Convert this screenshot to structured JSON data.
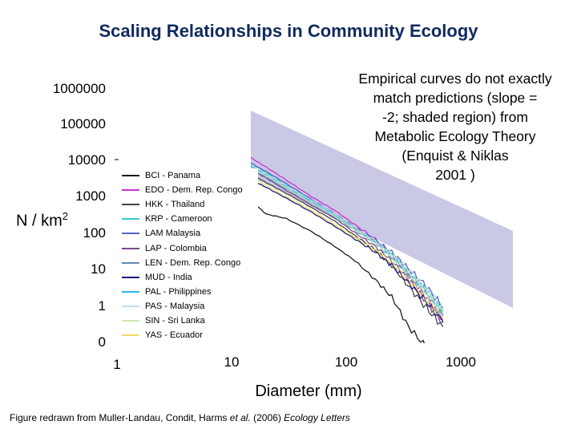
{
  "title": "Scaling Relationships in Community Ecology",
  "annotation": {
    "lines": [
      "Empirical curves do not exactly",
      "match predictions (slope =",
      "-2; shaded region) from",
      "Metabolic Ecology Theory",
      "(Enquist & Niklas",
      "2001 )"
    ]
  },
  "ylabel": {
    "text": "N / km",
    "sup": "2"
  },
  "caption": {
    "prefix": "Figure redrawn from Muller-Landau, Condit, Harms ",
    "etal": "et al.",
    "middle": " (2006) ",
    "journal": "Ecology Letters"
  },
  "chart_data": {
    "type": "line",
    "xscale": "log",
    "yscale": "log",
    "xlabel": "Diameter (mm)",
    "xticks": [
      "1",
      "10",
      "100",
      "1000"
    ],
    "yticks": [
      "1000000",
      "100000",
      "10000",
      "1000",
      "100",
      "10",
      "1",
      "0"
    ],
    "shaded_region": {
      "slope": -2,
      "color": "#c9c9e6"
    },
    "series": [
      {
        "name": "BCI - Panama",
        "color": "#1c1c1c",
        "points": [
          [
            8.5,
            500
          ],
          [
            10,
            900
          ],
          [
            15,
            900
          ],
          [
            20,
            400
          ],
          [
            30,
            300
          ],
          [
            50,
            130
          ],
          [
            80,
            50
          ],
          [
            120,
            20
          ],
          [
            180,
            6
          ],
          [
            250,
            2
          ],
          [
            350,
            0.3
          ],
          [
            500,
            0.08
          ],
          [
            700,
            0.05
          ]
        ]
      },
      {
        "name": "EDO - Dem. Rep. Congo",
        "color": "#cc33cc",
        "points": [
          [
            9,
            42000
          ],
          [
            10,
            30000
          ],
          [
            15,
            14000
          ],
          [
            20,
            8000
          ],
          [
            30,
            3500
          ],
          [
            50,
            1200
          ],
          [
            80,
            500
          ],
          [
            120,
            200
          ],
          [
            180,
            80
          ],
          [
            250,
            30
          ],
          [
            350,
            8
          ],
          [
            500,
            2
          ],
          [
            700,
            0.5
          ]
        ]
      },
      {
        "name": "HKK - Thailand",
        "color": "#444444",
        "points": [
          [
            9,
            12000
          ],
          [
            10,
            10000
          ],
          [
            15,
            5000
          ],
          [
            20,
            3000
          ],
          [
            30,
            1500
          ],
          [
            50,
            600
          ],
          [
            80,
            250
          ],
          [
            120,
            100
          ],
          [
            180,
            40
          ],
          [
            250,
            15
          ],
          [
            350,
            4
          ],
          [
            500,
            1
          ],
          [
            700,
            0.3
          ]
        ]
      },
      {
        "name": "KRP - Cameroon",
        "color": "#33cccc",
        "points": [
          [
            9,
            26000
          ],
          [
            10,
            20000
          ],
          [
            15,
            9000
          ],
          [
            20,
            5500
          ],
          [
            30,
            2500
          ],
          [
            50,
            900
          ],
          [
            80,
            380
          ],
          [
            120,
            160
          ],
          [
            180,
            70
          ],
          [
            250,
            30
          ],
          [
            350,
            10
          ],
          [
            500,
            3
          ],
          [
            700,
            0.8
          ]
        ]
      },
      {
        "name": "LAM   Malaysia",
        "color": "#5566bb",
        "points": [
          [
            9,
            28000
          ],
          [
            10,
            22000
          ],
          [
            15,
            10000
          ],
          [
            20,
            6000
          ],
          [
            30,
            2800
          ],
          [
            50,
            1000
          ],
          [
            80,
            400
          ],
          [
            120,
            170
          ],
          [
            180,
            75
          ],
          [
            250,
            35
          ],
          [
            350,
            12
          ],
          [
            500,
            4
          ],
          [
            700,
            1
          ]
        ]
      },
      {
        "name": "LAP - Colombia",
        "color": "#7a4a8a",
        "points": [
          [
            9,
            16000
          ],
          [
            10,
            13000
          ],
          [
            15,
            6500
          ],
          [
            20,
            4000
          ],
          [
            30,
            1800
          ],
          [
            50,
            700
          ],
          [
            80,
            300
          ],
          [
            120,
            120
          ],
          [
            180,
            50
          ],
          [
            250,
            20
          ],
          [
            350,
            6
          ],
          [
            500,
            1.5
          ],
          [
            700,
            0.4
          ]
        ]
      },
      {
        "name": "LEN - Dem. Rep. Congo",
        "color": "#6688bb",
        "points": [
          [
            9,
            18000
          ],
          [
            10,
            14000
          ],
          [
            15,
            7000
          ],
          [
            20,
            4200
          ],
          [
            30,
            2000
          ],
          [
            50,
            800
          ],
          [
            80,
            320
          ],
          [
            120,
            140
          ],
          [
            180,
            60
          ],
          [
            250,
            25
          ],
          [
            350,
            8
          ],
          [
            500,
            2.5
          ],
          [
            700,
            0.6
          ]
        ]
      },
      {
        "name": "MUD - India",
        "color": "#1a1a80",
        "points": [
          [
            9,
            7000
          ],
          [
            10,
            6000
          ],
          [
            15,
            3500
          ],
          [
            20,
            2200
          ],
          [
            30,
            1100
          ],
          [
            50,
            450
          ],
          [
            80,
            180
          ],
          [
            120,
            80
          ],
          [
            180,
            35
          ],
          [
            250,
            15
          ],
          [
            350,
            5
          ],
          [
            500,
            1.5
          ],
          [
            700,
            0.4
          ]
        ]
      },
      {
        "name": "PAL - Philippines",
        "color": "#2bb7e6",
        "points": [
          [
            9,
            22000
          ],
          [
            10,
            17000
          ],
          [
            15,
            8000
          ],
          [
            20,
            4800
          ],
          [
            30,
            2200
          ],
          [
            50,
            850
          ],
          [
            80,
            350
          ],
          [
            120,
            150
          ],
          [
            180,
            65
          ],
          [
            250,
            28
          ],
          [
            350,
            9
          ],
          [
            500,
            3
          ],
          [
            700,
            0.7
          ]
        ]
      },
      {
        "name": "PAS - Malaysia",
        "color": "#bbddee",
        "points": [
          [
            9,
            24000
          ],
          [
            10,
            19000
          ],
          [
            15,
            9000
          ],
          [
            20,
            5200
          ],
          [
            30,
            2400
          ],
          [
            50,
            950
          ],
          [
            80,
            390
          ],
          [
            120,
            165
          ],
          [
            180,
            72
          ],
          [
            250,
            32
          ],
          [
            350,
            11
          ],
          [
            500,
            3.5
          ],
          [
            700,
            0.9
          ]
        ]
      },
      {
        "name": "SIN - Sri Lanka",
        "color": "#cce8b0",
        "points": [
          [
            9,
            20000
          ],
          [
            10,
            16000
          ],
          [
            15,
            7500
          ],
          [
            20,
            4600
          ],
          [
            30,
            2100
          ],
          [
            50,
            820
          ],
          [
            80,
            340
          ],
          [
            120,
            145
          ],
          [
            180,
            62
          ],
          [
            250,
            27
          ],
          [
            350,
            9
          ],
          [
            500,
            2.8
          ],
          [
            700,
            0.7
          ]
        ]
      },
      {
        "name": "YAS - Ecuador",
        "color": "#eedd66",
        "points": [
          [
            9,
            9000
          ],
          [
            10,
            8000
          ],
          [
            15,
            4000
          ],
          [
            20,
            2500
          ],
          [
            30,
            1200
          ],
          [
            50,
            500
          ],
          [
            80,
            200
          ],
          [
            120,
            90
          ],
          [
            180,
            40
          ],
          [
            250,
            18
          ],
          [
            350,
            6
          ],
          [
            500,
            1.8
          ],
          [
            700,
            0.5
          ]
        ]
      }
    ]
  }
}
